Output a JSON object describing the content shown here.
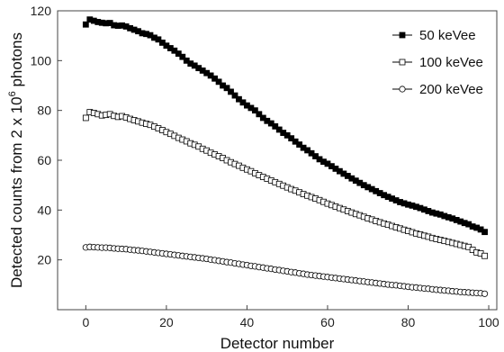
{
  "chart_data": {
    "type": "scatter",
    "xlabel": "Detector number",
    "ylabel_prefix": "Detected counts from 2 x 10",
    "ylabel_exp": "6",
    "ylabel_suffix": " photons",
    "xlim": [
      -7,
      102
    ],
    "ylim": [
      0,
      120
    ],
    "xticks": [
      0,
      20,
      40,
      60,
      80,
      100
    ],
    "yticks": [
      20,
      40,
      60,
      80,
      100,
      120
    ],
    "grid": false,
    "legend_position": "top-right",
    "x": [
      0,
      1,
      2,
      3,
      4,
      5,
      6,
      7,
      8,
      9,
      10,
      11,
      12,
      13,
      14,
      15,
      16,
      17,
      18,
      19,
      20,
      21,
      22,
      23,
      24,
      25,
      26,
      27,
      28,
      29,
      30,
      31,
      32,
      33,
      34,
      35,
      36,
      37,
      38,
      39,
      40,
      41,
      42,
      43,
      44,
      45,
      46,
      47,
      48,
      49,
      50,
      51,
      52,
      53,
      54,
      55,
      56,
      57,
      58,
      59,
      60,
      61,
      62,
      63,
      64,
      65,
      66,
      67,
      68,
      69,
      70,
      71,
      72,
      73,
      74,
      75,
      76,
      77,
      78,
      79,
      80,
      81,
      82,
      83,
      84,
      85,
      86,
      87,
      88,
      89,
      90,
      91,
      92,
      93,
      94,
      95,
      96,
      97,
      98,
      99
    ],
    "series": [
      {
        "name": "50 keVee",
        "marker": "filled-square",
        "values": [
          114.5,
          116.5,
          116,
          115.5,
          115.2,
          115,
          115.1,
          114.2,
          114,
          114.1,
          113.7,
          113,
          112.4,
          111.8,
          111,
          110.7,
          110.2,
          109.2,
          108.5,
          107.2,
          106,
          105,
          104,
          102.8,
          101.5,
          100,
          98.8,
          98,
          97,
          96,
          95,
          94,
          92.8,
          91.5,
          90,
          89,
          87.5,
          86,
          84.5,
          83.2,
          82,
          81,
          80,
          78.5,
          77,
          75.8,
          74.8,
          73.6,
          72.3,
          71,
          70,
          68.8,
          67.5,
          66.3,
          65,
          64,
          62.8,
          61.6,
          60.4,
          59.4,
          58.6,
          57.6,
          56.6,
          55.6,
          54.6,
          53.7,
          52.7,
          51.8,
          50.9,
          50,
          49.2,
          48.4,
          47.6,
          46.8,
          46,
          45.3,
          44.6,
          43.9,
          43.2,
          42.7,
          42.2,
          41.8,
          41.3,
          40.8,
          40.2,
          39.6,
          39,
          38.6,
          38.2,
          37.6,
          37.1,
          36.6,
          36,
          35.4,
          34.8,
          34.3,
          33.4,
          32.9,
          32.2,
          31.2
        ]
      },
      {
        "name": "100 keVee",
        "marker": "open-square",
        "values": [
          77,
          79.3,
          79,
          78.5,
          78,
          78.2,
          78.5,
          77.8,
          77.4,
          77.7,
          77.2,
          76.6,
          76.1,
          75.6,
          75.1,
          74.6,
          74.2,
          73.5,
          72.8,
          72.1,
          71.3,
          70.6,
          69.8,
          69,
          68.3,
          67.6,
          66.8,
          66.2,
          65.5,
          64.6,
          63.9,
          63,
          62.3,
          61.6,
          60.9,
          60,
          59.2,
          58.5,
          57.8,
          57,
          56.3,
          55.6,
          54.8,
          54,
          53.3,
          52.6,
          51.9,
          51.2,
          50.5,
          49.8,
          49.1,
          48.4,
          47.8,
          47.1,
          46.4,
          45.8,
          45.2,
          44.6,
          44,
          43.3,
          42.6,
          42,
          41.4,
          40.8,
          40.2,
          39.6,
          39,
          38.4,
          37.9,
          37.3,
          36.7,
          36.2,
          35.6,
          35.1,
          34.6,
          34.1,
          33.6,
          33.1,
          32.6,
          32.1,
          31.6,
          31.1,
          30.6,
          30.2,
          29.7,
          29.3,
          28.8,
          28.4,
          28,
          27.6,
          27.2,
          26.8,
          26.4,
          26,
          25.6,
          25.2,
          24,
          23,
          22.6,
          21.6
        ]
      },
      {
        "name": "200 keVee",
        "marker": "open-circle",
        "values": [
          25,
          25.2,
          25.1,
          25,
          24.9,
          24.9,
          24.8,
          24.6,
          24.5,
          24.4,
          24.3,
          24.1,
          23.9,
          23.8,
          23.6,
          23.4,
          23.2,
          23,
          22.8,
          22.6,
          22.4,
          22.2,
          22,
          21.8,
          21.6,
          21.4,
          21.2,
          21,
          20.8,
          20.6,
          20.4,
          20.1,
          19.9,
          19.6,
          19.4,
          19.1,
          18.9,
          18.6,
          18.4,
          18.1,
          17.9,
          17.6,
          17.4,
          17.1,
          16.9,
          16.6,
          16.4,
          16.1,
          15.9,
          15.6,
          15.4,
          15.1,
          14.9,
          14.6,
          14.4,
          14.1,
          13.9,
          13.7,
          13.5,
          13.3,
          13.1,
          12.9,
          12.7,
          12.5,
          12.3,
          12.1,
          11.9,
          11.7,
          11.5,
          11.3,
          11.1,
          10.9,
          10.7,
          10.5,
          10.3,
          10.1,
          9.9,
          9.8,
          9.6,
          9.4,
          9.2,
          9,
          8.9,
          8.7,
          8.5,
          8.4,
          8.2,
          8,
          7.9,
          7.7,
          7.6,
          7.4,
          7.3,
          7.1,
          7,
          6.9,
          6.8,
          6.7,
          6.6,
          6.4
        ]
      }
    ]
  }
}
